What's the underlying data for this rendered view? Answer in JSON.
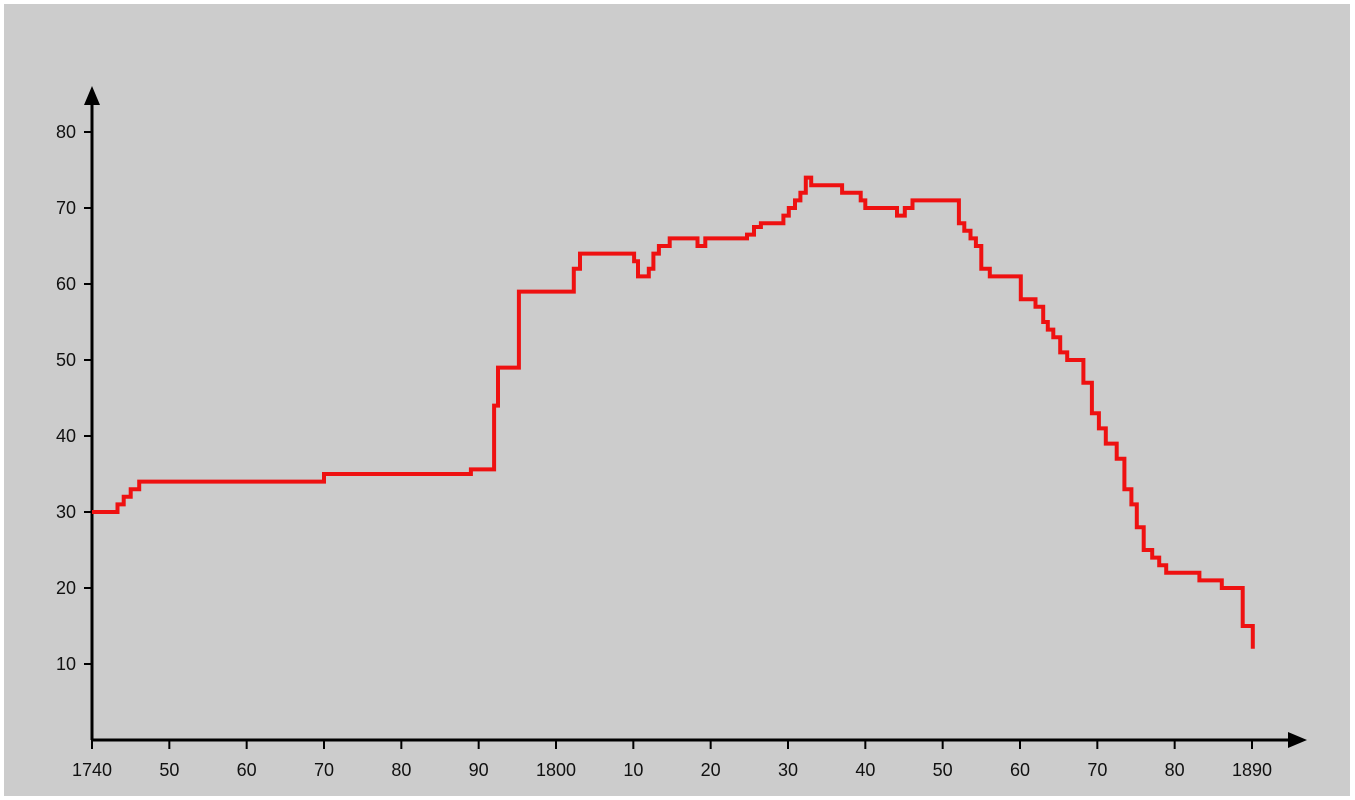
{
  "chart_data": {
    "type": "line",
    "step": true,
    "title": "",
    "xlabel": "",
    "ylabel": "",
    "xlim": [
      1740,
      1893
    ],
    "ylim": [
      0,
      85
    ],
    "x_tick_labels": [
      {
        "value": 1740,
        "label": "1740"
      },
      {
        "value": 1750,
        "label": "50"
      },
      {
        "value": 1760,
        "label": "60"
      },
      {
        "value": 1770,
        "label": "70"
      },
      {
        "value": 1780,
        "label": "80"
      },
      {
        "value": 1790,
        "label": "90"
      },
      {
        "value": 1800,
        "label": "1800"
      },
      {
        "value": 1810,
        "label": "10"
      },
      {
        "value": 1820,
        "label": "20"
      },
      {
        "value": 1830,
        "label": "30"
      },
      {
        "value": 1840,
        "label": "40"
      },
      {
        "value": 1850,
        "label": "50"
      },
      {
        "value": 1860,
        "label": "60"
      },
      {
        "value": 1870,
        "label": "70"
      },
      {
        "value": 1880,
        "label": "80"
      },
      {
        "value": 1890,
        "label": "1890"
      }
    ],
    "y_tick_labels": [
      {
        "value": 10,
        "label": "10"
      },
      {
        "value": 20,
        "label": "20"
      },
      {
        "value": 30,
        "label": "30"
      },
      {
        "value": 40,
        "label": "40"
      },
      {
        "value": 50,
        "label": "50"
      },
      {
        "value": 60,
        "label": "60"
      },
      {
        "value": 70,
        "label": "70"
      },
      {
        "value": 80,
        "label": "80"
      }
    ],
    "grid": false,
    "legend": "none",
    "line_color": "#ee1111",
    "series": [
      {
        "x": [
          1740,
          1743.3,
          1744.1,
          1745,
          1746.1,
          1770,
          1789,
          1792,
          1792.5,
          1793.2,
          1795.2,
          1802.3,
          1803.1,
          1810.1,
          1810.6,
          1812,
          1812.6,
          1813.3,
          1814.7,
          1818.3,
          1819.3,
          1824.7,
          1825.6,
          1826.5,
          1829.4,
          1830.1,
          1830.9,
          1831.6,
          1832.3,
          1833,
          1834,
          1837,
          1839.4,
          1840,
          1844.1,
          1845.1,
          1846.1,
          1852.1,
          1852.8,
          1853.6,
          1854.3,
          1855,
          1856.1,
          1860.1,
          1862,
          1863,
          1863.6,
          1864.3,
          1865.2,
          1866.1,
          1868.2,
          1869.3,
          1870.2,
          1871.1,
          1872.5,
          1873.5,
          1874.4,
          1875.1,
          1876,
          1877.1,
          1878,
          1878.9,
          1879.8,
          1883.2,
          1886.1,
          1888.8,
          1889.6,
          1890.1
        ],
        "y": [
          30,
          31,
          32,
          33,
          34,
          35,
          35.6,
          44,
          49,
          49,
          59,
          62,
          64,
          63,
          61,
          62,
          64,
          65,
          66,
          65,
          66,
          66.5,
          67.5,
          68,
          69,
          70,
          71,
          72,
          74,
          73,
          73,
          72,
          71,
          70,
          69,
          70,
          71,
          68,
          67,
          66,
          65,
          62,
          61,
          58,
          57,
          55,
          54,
          53,
          51,
          50,
          47,
          43,
          41,
          39,
          37,
          33,
          31,
          28,
          25,
          24,
          23,
          22,
          22,
          21,
          20,
          15,
          15,
          12
        ]
      }
    ]
  }
}
